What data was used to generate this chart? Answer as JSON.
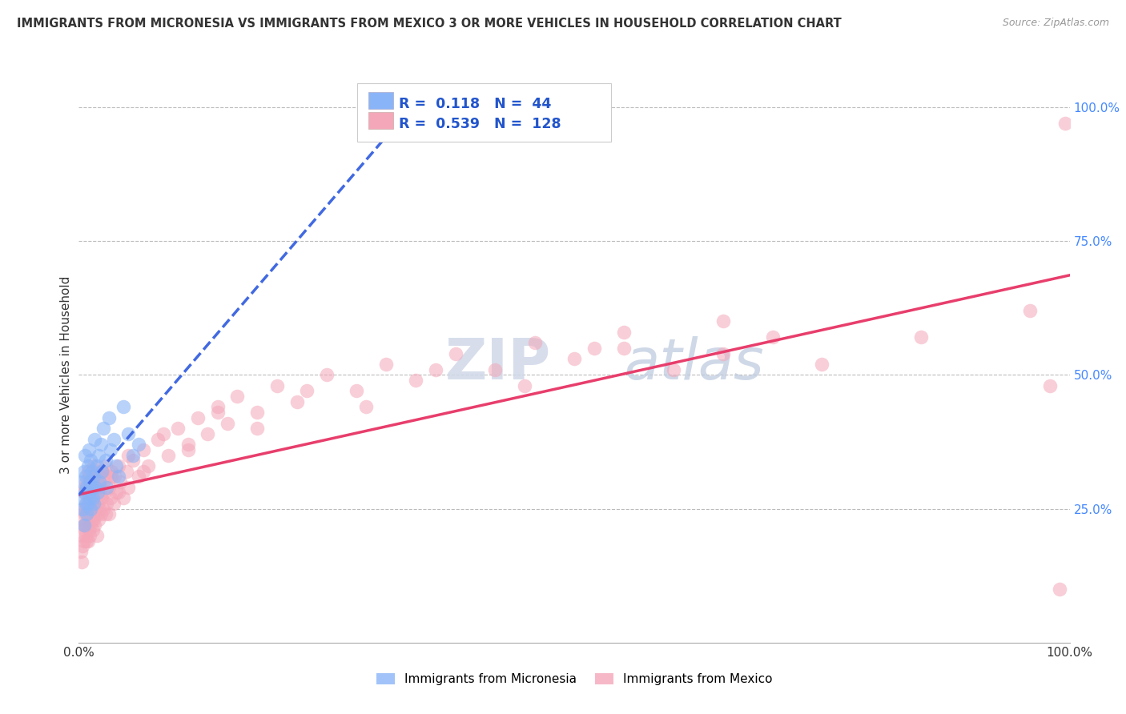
{
  "title": "IMMIGRANTS FROM MICRONESIA VS IMMIGRANTS FROM MEXICO 3 OR MORE VEHICLES IN HOUSEHOLD CORRELATION CHART",
  "source": "Source: ZipAtlas.com",
  "ylabel": "3 or more Vehicles in Household",
  "xlim": [
    0.0,
    1.0
  ],
  "ylim": [
    0.0,
    1.0
  ],
  "legend_r_micronesia": "0.118",
  "legend_n_micronesia": "44",
  "legend_r_mexico": "0.539",
  "legend_n_mexico": "128",
  "color_micronesia": "#8ab4f8",
  "color_mexico": "#f4a7b9",
  "trendline_micronesia_color": "#4169e1",
  "trendline_mexico_color": "#e83e6c",
  "watermark_zip": "ZIP",
  "watermark_atlas": "atlas",
  "background_color": "#ffffff",
  "grid_color": "#cccccc",
  "micronesia_x": [
    0.002,
    0.003,
    0.004,
    0.005,
    0.005,
    0.006,
    0.006,
    0.007,
    0.007,
    0.008,
    0.008,
    0.009,
    0.009,
    0.01,
    0.01,
    0.011,
    0.011,
    0.012,
    0.012,
    0.013,
    0.013,
    0.014,
    0.015,
    0.015,
    0.016,
    0.017,
    0.018,
    0.019,
    0.02,
    0.021,
    0.022,
    0.023,
    0.025,
    0.027,
    0.028,
    0.03,
    0.032,
    0.035,
    0.038,
    0.04,
    0.045,
    0.05,
    0.055,
    0.06
  ],
  "micronesia_y": [
    0.27,
    0.3,
    0.25,
    0.32,
    0.22,
    0.28,
    0.35,
    0.26,
    0.31,
    0.24,
    0.29,
    0.33,
    0.26,
    0.28,
    0.36,
    0.27,
    0.3,
    0.25,
    0.34,
    0.29,
    0.32,
    0.27,
    0.31,
    0.26,
    0.38,
    0.29,
    0.33,
    0.28,
    0.35,
    0.3,
    0.37,
    0.32,
    0.4,
    0.34,
    0.29,
    0.42,
    0.36,
    0.38,
    0.33,
    0.31,
    0.44,
    0.39,
    0.35,
    0.37
  ],
  "mexico_x": [
    0.002,
    0.003,
    0.003,
    0.004,
    0.004,
    0.005,
    0.005,
    0.005,
    0.006,
    0.006,
    0.006,
    0.007,
    0.007,
    0.007,
    0.008,
    0.008,
    0.008,
    0.009,
    0.009,
    0.009,
    0.01,
    0.01,
    0.01,
    0.01,
    0.011,
    0.011,
    0.011,
    0.012,
    0.012,
    0.012,
    0.013,
    0.013,
    0.014,
    0.014,
    0.015,
    0.015,
    0.015,
    0.016,
    0.016,
    0.017,
    0.017,
    0.018,
    0.018,
    0.019,
    0.019,
    0.02,
    0.02,
    0.021,
    0.021,
    0.022,
    0.022,
    0.023,
    0.024,
    0.025,
    0.025,
    0.026,
    0.027,
    0.028,
    0.029,
    0.03,
    0.03,
    0.032,
    0.033,
    0.035,
    0.036,
    0.038,
    0.04,
    0.042,
    0.045,
    0.048,
    0.05,
    0.055,
    0.06,
    0.065,
    0.07,
    0.08,
    0.09,
    0.1,
    0.11,
    0.12,
    0.13,
    0.14,
    0.15,
    0.16,
    0.18,
    0.2,
    0.22,
    0.25,
    0.28,
    0.31,
    0.34,
    0.38,
    0.42,
    0.46,
    0.5,
    0.52,
    0.55,
    0.6,
    0.65,
    0.7,
    0.003,
    0.006,
    0.009,
    0.012,
    0.015,
    0.018,
    0.022,
    0.027,
    0.033,
    0.04,
    0.05,
    0.065,
    0.085,
    0.11,
    0.14,
    0.18,
    0.23,
    0.29,
    0.36,
    0.45,
    0.55,
    0.65,
    0.75,
    0.85,
    0.96,
    0.98,
    0.99,
    0.995
  ],
  "mexico_y": [
    0.17,
    0.2,
    0.25,
    0.18,
    0.23,
    0.19,
    0.22,
    0.28,
    0.21,
    0.24,
    0.29,
    0.2,
    0.25,
    0.3,
    0.22,
    0.26,
    0.19,
    0.23,
    0.28,
    0.32,
    0.21,
    0.24,
    0.27,
    0.31,
    0.2,
    0.25,
    0.29,
    0.22,
    0.26,
    0.3,
    0.23,
    0.28,
    0.21,
    0.27,
    0.24,
    0.29,
    0.33,
    0.22,
    0.28,
    0.25,
    0.31,
    0.24,
    0.29,
    0.26,
    0.32,
    0.23,
    0.28,
    0.25,
    0.31,
    0.24,
    0.29,
    0.27,
    0.32,
    0.25,
    0.3,
    0.28,
    0.33,
    0.26,
    0.31,
    0.24,
    0.29,
    0.27,
    0.32,
    0.26,
    0.31,
    0.28,
    0.33,
    0.3,
    0.27,
    0.32,
    0.29,
    0.34,
    0.31,
    0.36,
    0.33,
    0.38,
    0.35,
    0.4,
    0.37,
    0.42,
    0.39,
    0.44,
    0.41,
    0.46,
    0.43,
    0.48,
    0.45,
    0.5,
    0.47,
    0.52,
    0.49,
    0.54,
    0.51,
    0.56,
    0.53,
    0.55,
    0.58,
    0.51,
    0.54,
    0.57,
    0.15,
    0.22,
    0.19,
    0.26,
    0.23,
    0.2,
    0.27,
    0.24,
    0.31,
    0.28,
    0.35,
    0.32,
    0.39,
    0.36,
    0.43,
    0.4,
    0.47,
    0.44,
    0.51,
    0.48,
    0.55,
    0.6,
    0.52,
    0.57,
    0.62,
    0.48,
    0.1,
    0.97
  ]
}
